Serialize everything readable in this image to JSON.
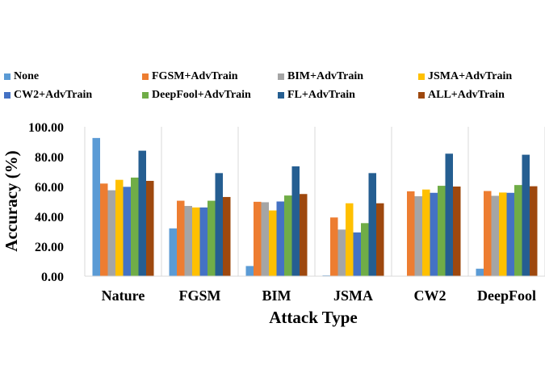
{
  "chart_data": {
    "type": "bar",
    "title": "",
    "xlabel": "Attack Type",
    "ylabel": "Accuracy (%)",
    "ylim": [
      0,
      100
    ],
    "yticks": [
      "0.00",
      "20.00",
      "40.00",
      "60.00",
      "80.00",
      "100.00"
    ],
    "grid": false,
    "legend_position": "top",
    "categories": [
      "Nature",
      "FGSM",
      "BIM",
      "JSMA",
      "CW2",
      "DeepFool"
    ],
    "series": [
      {
        "name": "None",
        "color": "#5b9bd5",
        "values": [
          92.5,
          32.0,
          6.8,
          0.5,
          0.2,
          5.0
        ]
      },
      {
        "name": "FGSM+AdvTrain",
        "color": "#ed7d31",
        "values": [
          62.0,
          50.5,
          49.8,
          39.3,
          56.8,
          57.0
        ]
      },
      {
        "name": "BIM+AdvTrain",
        "color": "#a5a5a5",
        "values": [
          57.5,
          47.0,
          49.5,
          31.2,
          53.5,
          53.8
        ]
      },
      {
        "name": "JSMA+AdvTrain",
        "color": "#ffc000",
        "values": [
          64.5,
          46.0,
          44.0,
          48.8,
          58.0,
          56.0
        ]
      },
      {
        "name": "CW2+AdvTrain",
        "color": "#4472c4",
        "values": [
          59.8,
          46.0,
          50.0,
          29.3,
          55.8,
          55.8
        ]
      },
      {
        "name": "DeepFool+AdvTrain",
        "color": "#70ad47",
        "values": [
          66.0,
          50.5,
          54.0,
          35.5,
          60.5,
          61.0
        ]
      },
      {
        "name": "FL+AdvTrain",
        "color": "#255e91",
        "values": [
          84.0,
          69.0,
          73.5,
          69.0,
          82.0,
          81.3
        ]
      },
      {
        "name": "ALL+AdvTrain",
        "color": "#9e480e",
        "values": [
          63.8,
          53.0,
          55.0,
          48.8,
          60.0,
          60.2
        ]
      }
    ]
  }
}
